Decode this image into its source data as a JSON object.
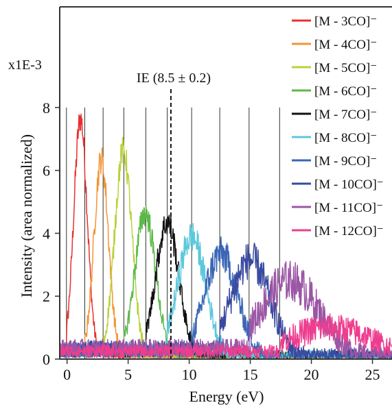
{
  "chart_data": {
    "type": "line",
    "xlabel": "Energy (eV)",
    "ylabel": "Intensity (area normalized)",
    "y_scale_label": "x1E-3",
    "xlim": [
      -0.6,
      26.6
    ],
    "ylim": [
      0,
      11.2
    ],
    "x_ticks": [
      0,
      5,
      10,
      15,
      20,
      25
    ],
    "y_ticks": [
      0,
      2,
      4,
      6,
      8
    ],
    "grid": false,
    "legend_position": "top-right",
    "annotation": {
      "text": "IE (8.5 ± 0.2)",
      "x": 8.5
    },
    "threshold_lines": [
      -0.05,
      1.45,
      2.95,
      4.65,
      6.45,
      8.2,
      10.2,
      12.5,
      14.9,
      17.4
    ],
    "threshold_line_top": 8,
    "series": [
      {
        "name": "[M - 3CO]⁻",
        "color": "#e8302e",
        "center": 1.1,
        "width": 0.55,
        "peak": 7.6,
        "noise": 0.45,
        "start": -0.05
      },
      {
        "name": "[M - 4CO]⁻",
        "color": "#f39433",
        "center": 2.8,
        "width": 0.6,
        "peak": 6.3,
        "noise": 0.45,
        "start": 1.45
      },
      {
        "name": "[M - 5CO]⁻",
        "color": "#b8d33a",
        "center": 4.6,
        "width": 0.7,
        "peak": 6.6,
        "noise": 0.45,
        "start": 2.95
      },
      {
        "name": "[M - 6CO]⁻",
        "color": "#5bb947",
        "center": 6.4,
        "width": 0.85,
        "peak": 4.6,
        "noise": 0.45,
        "start": 4.65
      },
      {
        "name": "[M - 7CO]⁻",
        "color": "#111111",
        "center": 8.2,
        "width": 0.95,
        "peak": 4.3,
        "noise": 0.45,
        "start": 6.45
      },
      {
        "name": "[M - 8CO]⁻",
        "color": "#5cc8dc",
        "center": 10.2,
        "width": 1.15,
        "peak": 3.85,
        "noise": 0.5,
        "start": 8.2
      },
      {
        "name": "[M - 9CO]⁻",
        "color": "#3a66b5",
        "center": 12.6,
        "width": 1.35,
        "peak": 3.3,
        "noise": 0.55,
        "start": 10.2
      },
      {
        "name": "[M - 10CO]⁻",
        "color": "#3a4aa0",
        "center": 15.0,
        "width": 1.6,
        "peak": 3.1,
        "noise": 0.6,
        "start": 12.5
      },
      {
        "name": "[M - 11CO]⁻",
        "color": "#9b56a5",
        "center": 18.2,
        "width": 2.4,
        "peak": 2.45,
        "noise": 0.65,
        "start": 14.9
      },
      {
        "name": "[M - 12CO]⁻",
        "color": "#ee3d8f",
        "center": 21.5,
        "width": 3.5,
        "peak": 0.95,
        "noise": 0.45,
        "start": 17.4
      }
    ]
  }
}
